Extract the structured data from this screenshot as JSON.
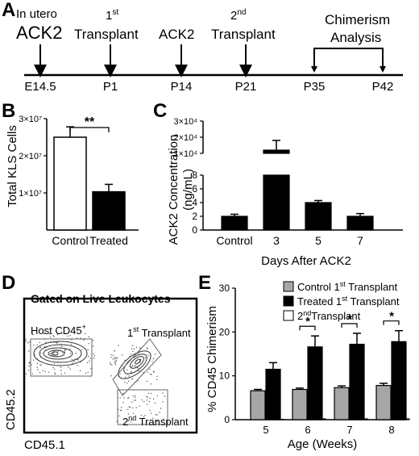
{
  "panel_labels": {
    "a": "A",
    "b": "B",
    "c": "C",
    "d": "D",
    "e": "E"
  },
  "timeline": {
    "events": [
      {
        "line1": "In utero",
        "line2": "ACK2"
      },
      {
        "line1": "1",
        "sup": "st",
        "line2": "Transplant"
      },
      {
        "line1": "ACK2",
        "line2": ""
      },
      {
        "line1": "2",
        "sup": "nd",
        "line2": "Transplant"
      },
      {
        "line1": "Chimerism",
        "line2": "Analysis"
      }
    ],
    "times": [
      "E14.5",
      "P1",
      "P14",
      "P21",
      "P35",
      "P42"
    ]
  },
  "chart_data": [
    {
      "panel": "B",
      "type": "bar",
      "categories": [
        "Control",
        "Treated"
      ],
      "values": [
        25000000,
        10300000
      ],
      "errors": [
        2800000,
        2000000
      ],
      "colors": [
        "#ffffff",
        "#000000"
      ],
      "ylabel": "Total KLS Cells",
      "ylim": [
        0,
        30000000
      ],
      "ytick_labels": [
        "1×10⁷",
        "2×10⁷",
        "3×10⁷"
      ],
      "significance": "**"
    },
    {
      "panel": "C",
      "type": "bar",
      "categories": [
        "Control",
        "3",
        "5",
        "7"
      ],
      "values": [
        2.0,
        12000,
        4.0,
        2.0
      ],
      "errors": [
        0.3,
        6000,
        0.3,
        0.4
      ],
      "color": "#000000",
      "xlabel": "Days After ACK2",
      "ylabel_line1": "ACK2 Concentration",
      "ylabel_line2": "(ng/mL)",
      "ylim_lower": [
        0,
        8
      ],
      "ylim_upper": [
        10000,
        30000
      ],
      "ytick_labels_lower": [
        "0",
        "2",
        "4",
        "6",
        "8"
      ],
      "ytick_labels_upper": [
        "1×10⁴",
        "2×10⁴",
        "3×10⁴"
      ]
    },
    {
      "panel": "E",
      "type": "bar",
      "categories": [
        "5",
        "6",
        "7",
        "8"
      ],
      "xlabel": "Age (Weeks)",
      "ylabel": "% CD45 Chimerism",
      "ylim": [
        0,
        30
      ],
      "yticks": [
        "0",
        "10",
        "20",
        "30"
      ],
      "series": [
        {
          "name": "Control 1st Transplant",
          "name_main": "Control 1",
          "name_sup": "st",
          "name_tail": " Transplant",
          "color": "#a6a6a6",
          "values": [
            6.6,
            6.9,
            7.3,
            7.8
          ],
          "errors": [
            0.3,
            0.3,
            0.4,
            0.5
          ]
        },
        {
          "name": "Treated 1st Transplant",
          "name_main": "Treated 1",
          "name_sup": "st",
          "name_tail": " Transplant",
          "color": "#000000",
          "values": [
            11.5,
            16.6,
            17.2,
            17.8
          ],
          "errors": [
            1.5,
            2.5,
            2.5,
            2.5
          ]
        },
        {
          "name": "2nd Transplant",
          "name_main": "2",
          "name_sup": "nd",
          "name_tail": "Transplant",
          "color": "#ffffff",
          "values": [
            0.1,
            0.2,
            0.2,
            0.2
          ],
          "errors": [
            0,
            0,
            0,
            0
          ]
        }
      ],
      "significance": [
        "",
        "*",
        "*",
        "*"
      ]
    }
  ],
  "flow": {
    "title": "Gated on Live Leukocytes",
    "gate_host": "Host CD45",
    "gate_host_sup": "+",
    "gate_first": "1",
    "gate_first_sup": "st",
    "gate_first_tail": " Transplant",
    "gate_second": "2",
    "gate_second_sup": "nd",
    "gate_second_tail": " Transplant",
    "xlabel": "CD45.1",
    "ylabel": "CD45.2"
  }
}
